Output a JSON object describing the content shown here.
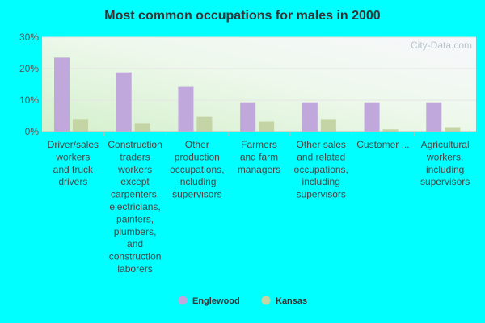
{
  "chart_data": {
    "type": "bar",
    "title": "Most common occupations for males in 2000",
    "categories": [
      [
        "Driver/sales",
        "workers",
        "and truck",
        "drivers"
      ],
      [
        "Construction",
        "traders",
        "workers",
        "except",
        "carpenters,",
        "electricians,",
        "painters,",
        "plumbers,",
        "and",
        "construction",
        "laborers"
      ],
      [
        "Other",
        "production",
        "occupations,",
        "including",
        "supervisors"
      ],
      [
        "Farmers",
        "and farm",
        "managers"
      ],
      [
        "Other sales",
        "and related",
        "occupations,",
        "including",
        "supervisors"
      ],
      [
        "Customer ..."
      ],
      [
        "Agricultural",
        "workers,",
        "including",
        "supervisors"
      ]
    ],
    "series": [
      {
        "name": "Englewood",
        "color": "#c0a8dc",
        "values": [
          23.5,
          18.8,
          14.2,
          9.3,
          9.3,
          9.3,
          9.3
        ]
      },
      {
        "name": "Kansas",
        "color": "#c4d4a4",
        "values": [
          4.0,
          2.7,
          4.7,
          3.2,
          4.0,
          0.7,
          1.4
        ]
      }
    ],
    "yticks": [
      "0%",
      "10%",
      "20%",
      "30%"
    ],
    "ylim": [
      0,
      30
    ],
    "grid": true,
    "legend_position": "bottom-center",
    "watermark": "City-Data.com"
  }
}
